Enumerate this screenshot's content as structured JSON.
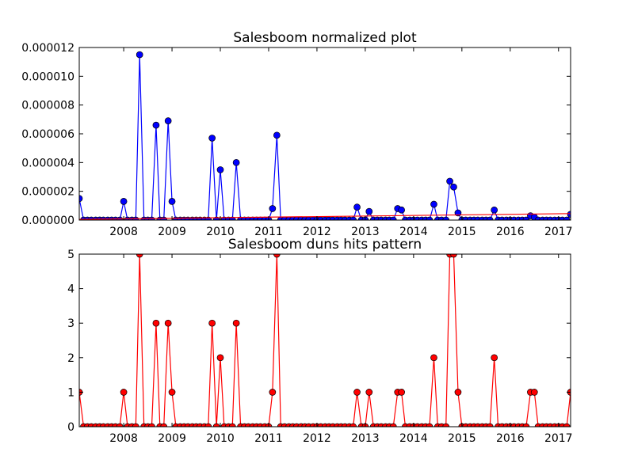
{
  "chart_data": [
    {
      "type": "line",
      "title": "Salesboom normalized plot",
      "xlabel": "",
      "ylabel": "",
      "xlim": [
        2007.08,
        2017.25
      ],
      "ylim": [
        0,
        1.2e-05
      ],
      "x_ticks": [
        2008,
        2009,
        2010,
        2011,
        2012,
        2013,
        2014,
        2015,
        2016,
        2017
      ],
      "y_ticks": [
        "0.000000",
        "0.000002",
        "0.000004",
        "0.000006",
        "0.000008",
        "0.000010",
        "0.000012"
      ],
      "y_tick_values": [
        0,
        2e-06,
        4e-06,
        6e-06,
        8e-06,
        1e-05,
        1.2e-05
      ],
      "grid": false,
      "series": [
        {
          "color": "#0000ff",
          "marker": "circle",
          "marker_color": "#0000ff",
          "x": [
            2007.08,
            2007.17,
            2007.25,
            2007.33,
            2007.42,
            2007.5,
            2007.58,
            2007.67,
            2007.75,
            2007.83,
            2007.92,
            2008.0,
            2008.08,
            2008.17,
            2008.25,
            2008.33,
            2008.42,
            2008.5,
            2008.58,
            2008.67,
            2008.75,
            2008.83,
            2008.92,
            2009.0,
            2009.08,
            2009.17,
            2009.25,
            2009.33,
            2009.42,
            2009.5,
            2009.58,
            2009.67,
            2009.75,
            2009.83,
            2009.92,
            2010.0,
            2010.08,
            2010.17,
            2010.25,
            2010.33,
            2010.42,
            2010.5,
            2010.58,
            2010.67,
            2010.75,
            2010.83,
            2010.92,
            2011.0,
            2011.08,
            2011.17,
            2011.25,
            2011.33,
            2011.42,
            2011.5,
            2011.58,
            2011.67,
            2011.75,
            2011.83,
            2011.92,
            2012.0,
            2012.08,
            2012.17,
            2012.25,
            2012.33,
            2012.42,
            2012.5,
            2012.58,
            2012.67,
            2012.75,
            2012.83,
            2012.92,
            2013.0,
            2013.08,
            2013.17,
            2013.25,
            2013.33,
            2013.42,
            2013.5,
            2013.58,
            2013.67,
            2013.75,
            2013.83,
            2013.92,
            2014.0,
            2014.08,
            2014.17,
            2014.25,
            2014.33,
            2014.42,
            2014.5,
            2014.58,
            2014.67,
            2014.75,
            2014.83,
            2014.92,
            2015.0,
            2015.08,
            2015.17,
            2015.25,
            2015.33,
            2015.42,
            2015.5,
            2015.58,
            2015.67,
            2015.75,
            2015.83,
            2015.92,
            2016.0,
            2016.08,
            2016.17,
            2016.25,
            2016.33,
            2016.42,
            2016.5,
            2016.58,
            2016.67,
            2016.75,
            2016.83,
            2016.92,
            2017.0,
            2017.08,
            2017.17,
            2017.25
          ],
          "y": [
            1.5e-06,
            0,
            0,
            0,
            0,
            0,
            0,
            0,
            0,
            0,
            0,
            1.3e-06,
            0,
            0,
            0,
            1.15e-05,
            0,
            0,
            0,
            6.6e-06,
            0,
            0,
            6.9e-06,
            1.3e-06,
            0,
            0,
            0,
            0,
            0,
            0,
            0,
            0,
            0,
            5.7e-06,
            0,
            3.5e-06,
            0,
            0,
            0,
            4e-06,
            0,
            0,
            0,
            0,
            0,
            0,
            0,
            0,
            8e-07,
            5.9e-06,
            0,
            0,
            0,
            0,
            0,
            0,
            0,
            0,
            0,
            0,
            0,
            0,
            0,
            0,
            0,
            0,
            0,
            0,
            0,
            9e-07,
            0,
            0,
            6e-07,
            0,
            0,
            0,
            0,
            0,
            0,
            8e-07,
            7e-07,
            0,
            0,
            0,
            0,
            0,
            0,
            0,
            1.1e-06,
            0,
            0,
            0,
            2.7e-06,
            2.3e-06,
            5e-07,
            0,
            0,
            0,
            0,
            0,
            0,
            0,
            0,
            7e-07,
            0,
            0,
            0,
            0,
            0,
            0,
            0,
            0,
            3e-07,
            2e-07,
            0,
            0,
            0,
            0,
            0,
            0,
            0,
            0,
            4e-07
          ]
        },
        {
          "color": "#ff0000",
          "marker": "none",
          "x": [
            2007.08,
            2017.25
          ],
          "y": [
            5e-08,
            4.5e-07
          ]
        }
      ]
    },
    {
      "type": "line",
      "title": "Salesboom duns hits pattern",
      "xlabel": "",
      "ylabel": "",
      "xlim": [
        2007.08,
        2017.25
      ],
      "ylim": [
        0,
        5
      ],
      "x_ticks": [
        2008,
        2009,
        2010,
        2011,
        2012,
        2013,
        2014,
        2015,
        2016,
        2017
      ],
      "y_ticks": [
        "0",
        "1",
        "2",
        "3",
        "4",
        "5"
      ],
      "y_tick_values": [
        0,
        1,
        2,
        3,
        4,
        5
      ],
      "grid": false,
      "series": [
        {
          "color": "#ff0000",
          "marker": "circle",
          "marker_color": "#ff0000",
          "x": [
            2007.08,
            2007.17,
            2007.25,
            2007.33,
            2007.42,
            2007.5,
            2007.58,
            2007.67,
            2007.75,
            2007.83,
            2007.92,
            2008.0,
            2008.08,
            2008.17,
            2008.25,
            2008.33,
            2008.42,
            2008.5,
            2008.58,
            2008.67,
            2008.75,
            2008.83,
            2008.92,
            2009.0,
            2009.08,
            2009.17,
            2009.25,
            2009.33,
            2009.42,
            2009.5,
            2009.58,
            2009.67,
            2009.75,
            2009.83,
            2009.92,
            2010.0,
            2010.08,
            2010.17,
            2010.25,
            2010.33,
            2010.42,
            2010.5,
            2010.58,
            2010.67,
            2010.75,
            2010.83,
            2010.92,
            2011.0,
            2011.08,
            2011.17,
            2011.25,
            2011.33,
            2011.42,
            2011.5,
            2011.58,
            2011.67,
            2011.75,
            2011.83,
            2011.92,
            2012.0,
            2012.08,
            2012.17,
            2012.25,
            2012.33,
            2012.42,
            2012.5,
            2012.58,
            2012.67,
            2012.75,
            2012.83,
            2012.92,
            2013.0,
            2013.08,
            2013.17,
            2013.25,
            2013.33,
            2013.42,
            2013.5,
            2013.58,
            2013.67,
            2013.75,
            2013.83,
            2013.92,
            2014.0,
            2014.08,
            2014.17,
            2014.25,
            2014.33,
            2014.42,
            2014.5,
            2014.58,
            2014.67,
            2014.75,
            2014.83,
            2014.92,
            2015.0,
            2015.08,
            2015.17,
            2015.25,
            2015.33,
            2015.42,
            2015.5,
            2015.58,
            2015.67,
            2015.75,
            2015.83,
            2015.92,
            2016.0,
            2016.08,
            2016.17,
            2016.25,
            2016.33,
            2016.42,
            2016.5,
            2016.58,
            2016.67,
            2016.75,
            2016.83,
            2016.92,
            2017.0,
            2017.08,
            2017.17,
            2017.25
          ],
          "y": [
            1,
            0,
            0,
            0,
            0,
            0,
            0,
            0,
            0,
            0,
            0,
            1,
            0,
            0,
            0,
            5,
            0,
            0,
            0,
            3,
            0,
            0,
            3,
            1,
            0,
            0,
            0,
            0,
            0,
            0,
            0,
            0,
            0,
            3,
            0,
            2,
            0,
            0,
            0,
            3,
            0,
            0,
            0,
            0,
            0,
            0,
            0,
            0,
            1,
            5,
            0,
            0,
            0,
            0,
            0,
            0,
            0,
            0,
            0,
            0,
            0,
            0,
            0,
            0,
            0,
            0,
            0,
            0,
            0,
            1,
            0,
            0,
            1,
            0,
            0,
            0,
            0,
            0,
            0,
            1,
            1,
            0,
            0,
            0,
            0,
            0,
            0,
            0,
            2,
            0,
            0,
            0,
            5,
            5,
            1,
            0,
            0,
            0,
            0,
            0,
            0,
            0,
            0,
            2,
            0,
            0,
            0,
            0,
            0,
            0,
            0,
            0,
            1,
            1,
            0,
            0,
            0,
            0,
            0,
            0,
            0,
            0,
            1
          ]
        }
      ]
    }
  ]
}
